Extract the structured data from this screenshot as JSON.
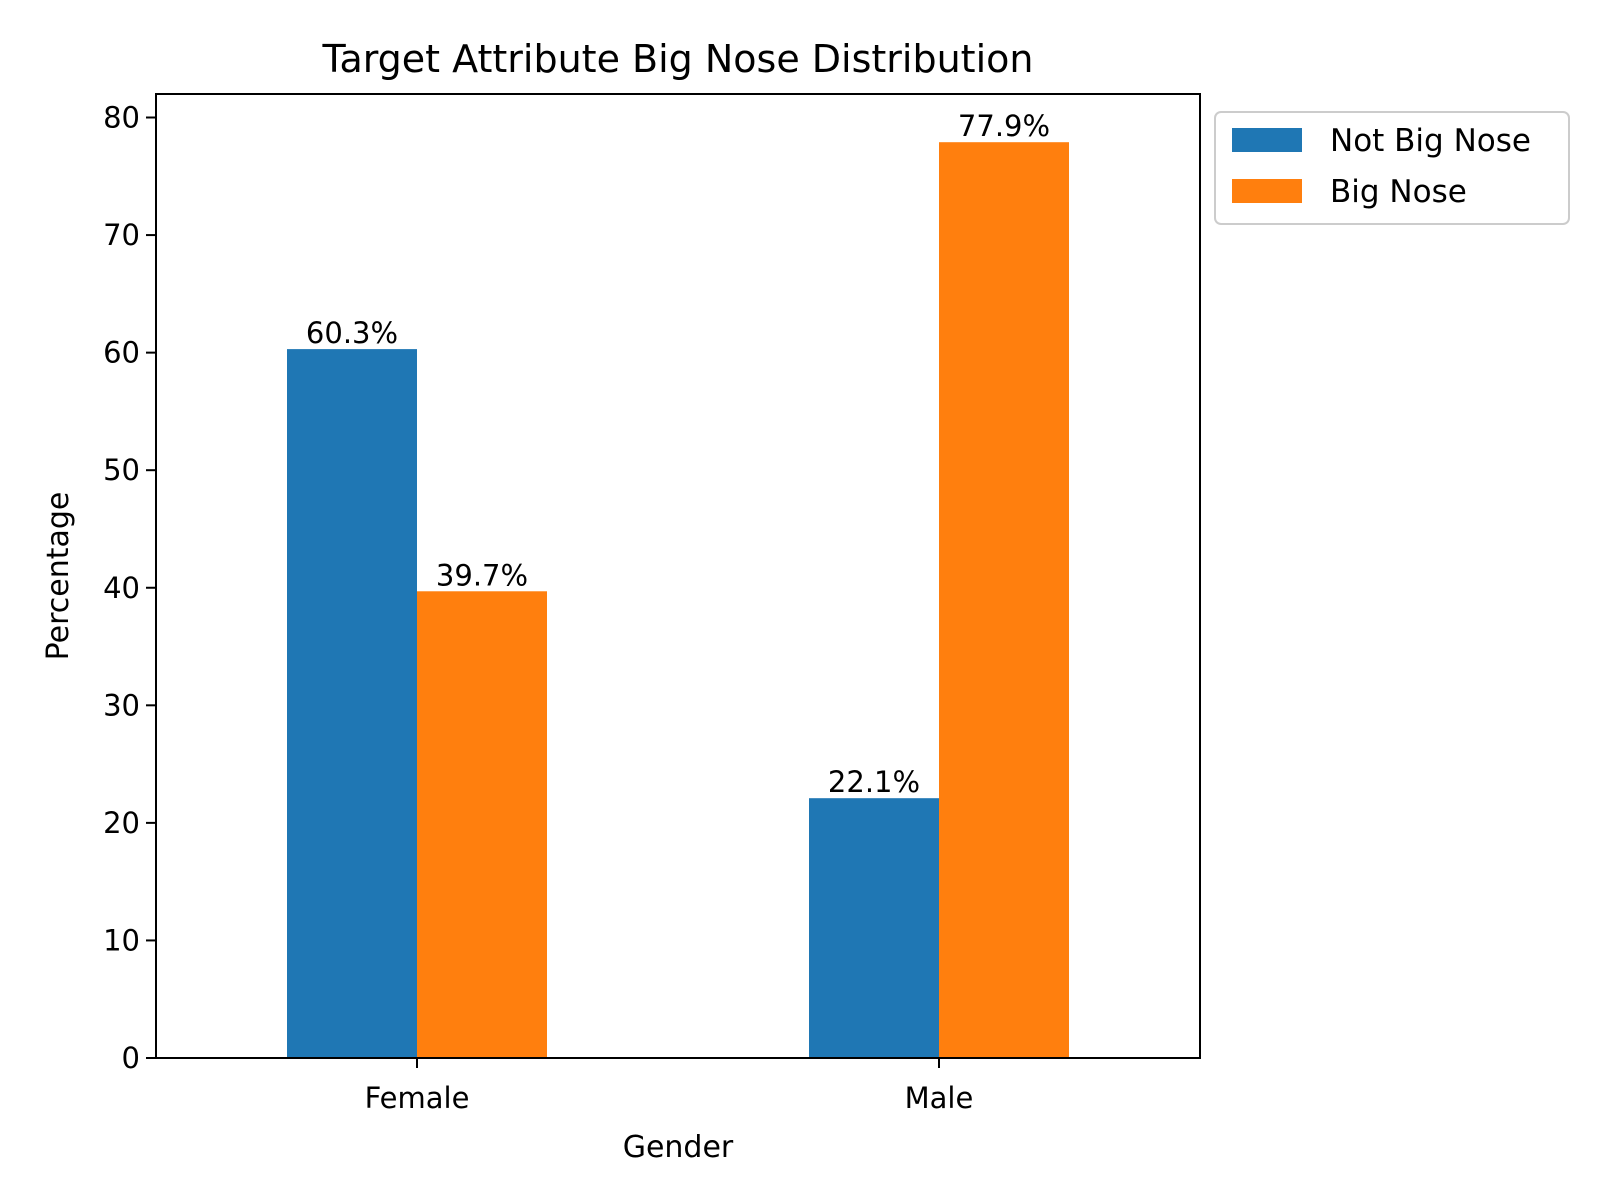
{
  "chart_data": {
    "type": "bar",
    "title": "Target Attribute Big Nose Distribution",
    "xlabel": "Gender",
    "ylabel": "Percentage",
    "categories": [
      "Female",
      "Male"
    ],
    "series": [
      {
        "name": "Not Big Nose",
        "color": "#1f77b4",
        "values": [
          60.3,
          22.1
        ],
        "labels": [
          "60.3%",
          "22.1%"
        ]
      },
      {
        "name": "Big Nose",
        "color": "#ff7f0e",
        "values": [
          39.7,
          77.9
        ],
        "labels": [
          "39.7%",
          "77.9%"
        ]
      }
    ],
    "ylim": [
      0,
      82
    ],
    "yticks": [
      0,
      10,
      20,
      30,
      40,
      50,
      60,
      70,
      80
    ],
    "grid": false,
    "legend_position": "outside-top-right"
  }
}
